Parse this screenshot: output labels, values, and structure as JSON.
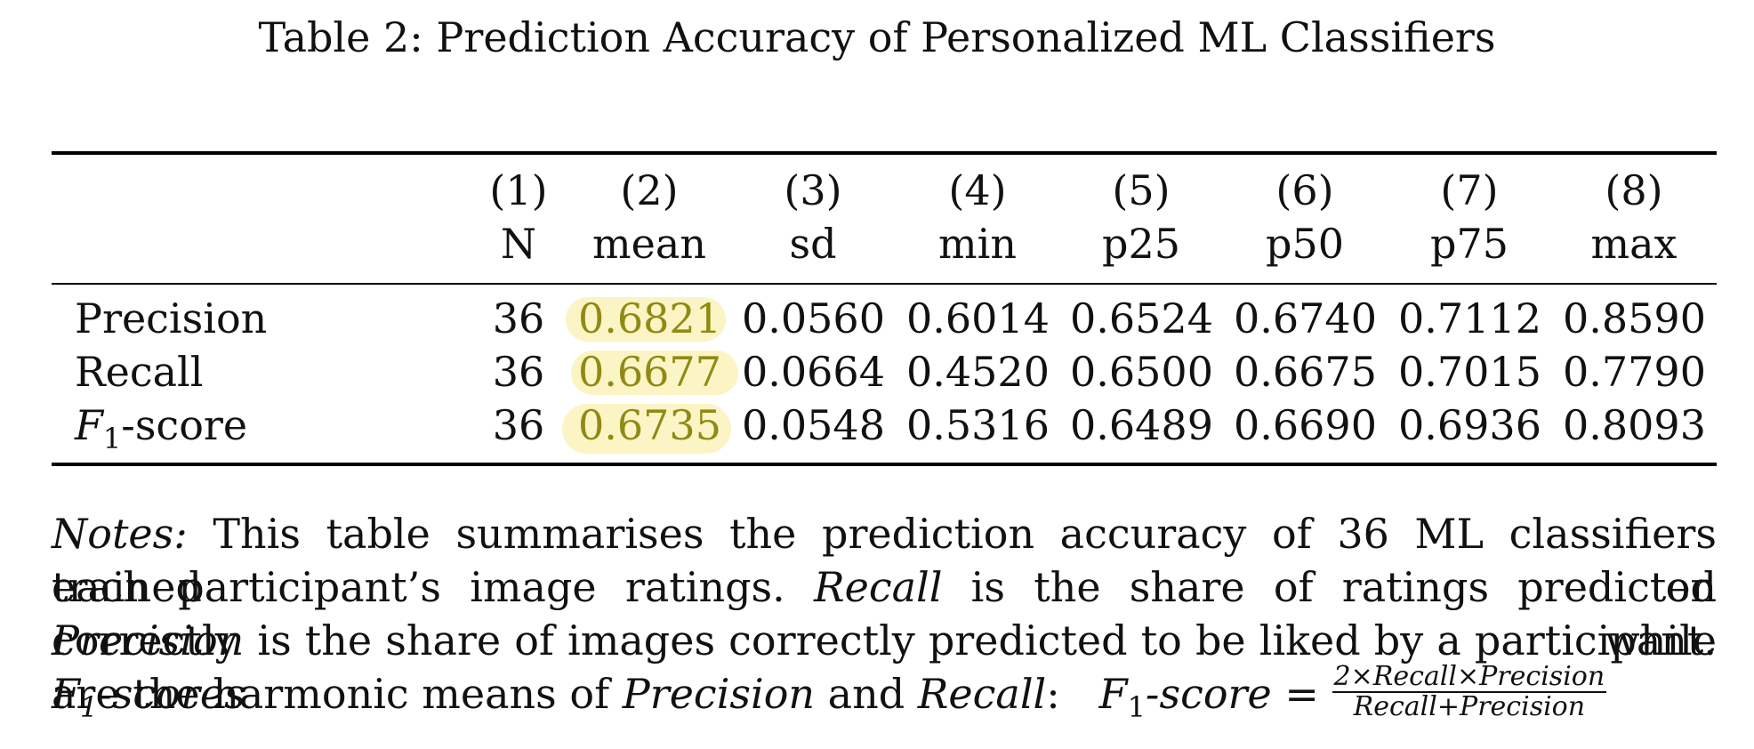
{
  "caption": "Table 2: Prediction Accuracy of Personalized ML Classifiers",
  "table": {
    "column_numbers": [
      "(1)",
      "(2)",
      "(3)",
      "(4)",
      "(5)",
      "(6)",
      "(7)",
      "(8)"
    ],
    "column_labels": [
      "N",
      "mean",
      "sd",
      "min",
      "p25",
      "p50",
      "p75",
      "max"
    ],
    "rows": [
      {
        "label": "Precision",
        "values": [
          "36",
          "0.6821",
          "0.0560",
          "0.6014",
          "0.6524",
          "0.6740",
          "0.7112",
          "0.8590"
        ]
      },
      {
        "label": "Recall",
        "values": [
          "36",
          "0.6677",
          "0.0664",
          "0.4520",
          "0.6500",
          "0.6675",
          "0.7015",
          "0.7790"
        ]
      },
      {
        "label_main": "F",
        "label_sub": "1",
        "label_rest": "-score",
        "values": [
          "36",
          "0.6735",
          "0.0548",
          "0.5316",
          "0.6489",
          "0.6690",
          "0.6936",
          "0.8093"
        ]
      }
    ],
    "highlight_color": "#fbf4c4",
    "highlight_text_color": "#8f8a14"
  },
  "notes": {
    "label": "Notes:",
    "line1_rest": "This table summarises the prediction accuracy of 36 ML classifiers trained on",
    "line2_a": "each participant’s image ratings.",
    "line2_italic": "Recall",
    "line2_b": "is the share of ratings predicted correctly while",
    "line3_italic": "Precision",
    "line3_b": "is the share of images correctly predicted to be liked by a participant.",
    "line3_f": "F",
    "line3_sub": "1",
    "line3_c": "-scores",
    "line4_a": "are the harmonic means of",
    "line4_precision": "Precision",
    "line4_and": "and",
    "line4_recall": "Recall",
    "line4_colon": ":",
    "formula_f": "F",
    "formula_sub": "1",
    "formula_rest": "-score",
    "formula_eq": "=",
    "formula_num": "2×Recall×Precision",
    "formula_den": "Recall+Precision"
  }
}
